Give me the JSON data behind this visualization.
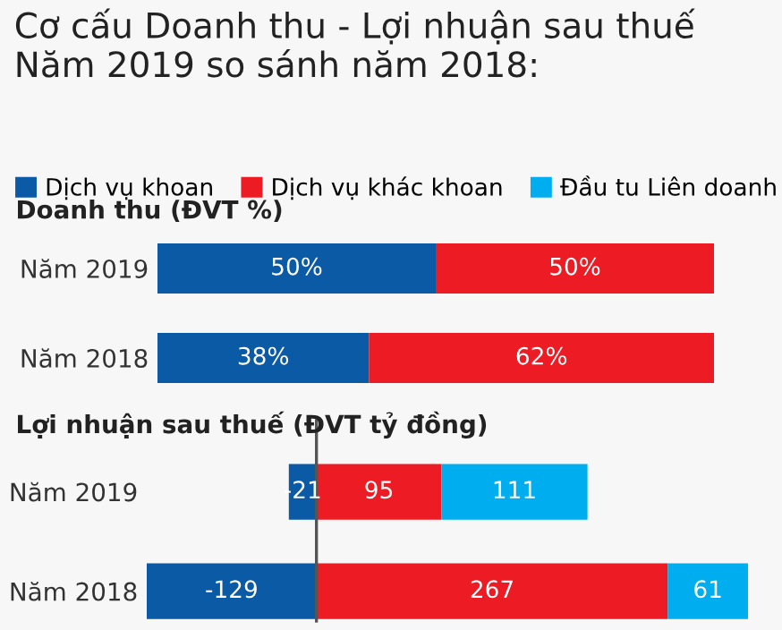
{
  "chart_data": [
    {
      "type": "bar",
      "orientation": "horizontal",
      "stacked": true,
      "title": "Cơ cấu Doanh thu - Lợi nhuận sau thuế\nNăm 2019 so sánh năm 2018:",
      "subtitle": "Doanh thu (ĐVT %)",
      "categories": [
        "Năm 2019",
        "Năm 2018"
      ],
      "xlim": [
        0,
        100
      ],
      "tick_labels": "y",
      "legend": "top left",
      "grid": false,
      "series": [
        {
          "name": "Dịch vụ khoan",
          "color": "#0b5aa5",
          "values": [
            50,
            38
          ],
          "value_labels": [
            "50%",
            "38%"
          ]
        },
        {
          "name": "Dịch vụ khác khoan",
          "color": "#ed1c24",
          "values": [
            50,
            62
          ],
          "value_labels": [
            "50%",
            "62%"
          ]
        },
        {
          "name": "Đầu tu Liên doanh",
          "color": "#00aeef",
          "values": [
            null,
            null
          ]
        }
      ]
    },
    {
      "type": "bar",
      "orientation": "horizontal",
      "stacked": true,
      "title": "Lợi nhuận sau thuế (ĐVT tỷ đồng)",
      "categories": [
        "Năm 2019",
        "Năm 2018"
      ],
      "xlim": [
        -129,
        328
      ],
      "tick_labels": "y",
      "grid": false,
      "data_labels": true,
      "ref_lines": [
        {
          "axis": "x",
          "value": 0,
          "color": "#555555"
        }
      ],
      "series": [
        {
          "color": "#0b5aa5",
          "values": [
            -21,
            -129
          ]
        },
        {
          "color": "#ed1c24",
          "values": [
            95,
            267
          ]
        },
        {
          "color": "#00aeef",
          "values": [
            111,
            61
          ]
        }
      ]
    }
  ]
}
